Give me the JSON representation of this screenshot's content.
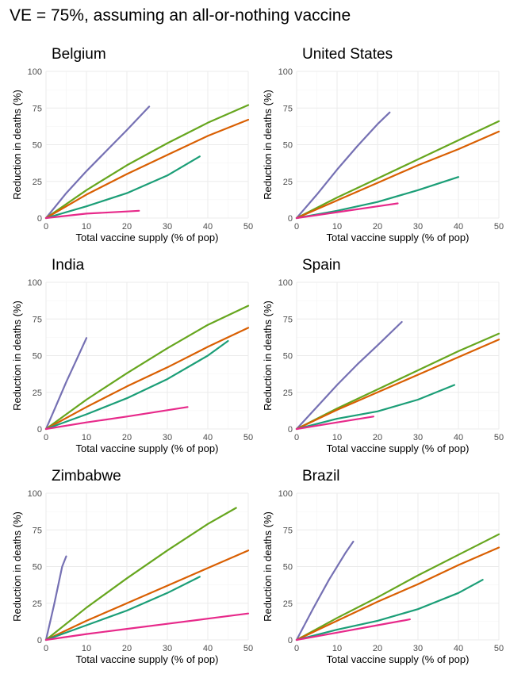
{
  "title": "VE = 75%, assuming an all-or-nothing vaccine",
  "colors": {
    "purple": "#7570b3",
    "green": "#66a61e",
    "orange": "#d95f02",
    "teal": "#1b9e77",
    "pink": "#e7298a"
  },
  "chart_data": [
    {
      "type": "line",
      "title": "Belgium",
      "xlabel": "Total vaccine supply (% of pop)",
      "ylabel": "Reduction in deaths (%)",
      "xlim": [
        0,
        50
      ],
      "ylim": [
        0,
        100
      ],
      "xticks": [
        0,
        10,
        20,
        30,
        40,
        50
      ],
      "yticks": [
        0,
        25,
        50,
        75,
        100
      ],
      "grid": true,
      "series": [
        {
          "color": "#7570b3",
          "x": [
            0,
            5,
            10,
            15,
            20,
            25.5
          ],
          "y": [
            0,
            17,
            32,
            46,
            60,
            76
          ]
        },
        {
          "color": "#66a61e",
          "x": [
            0,
            10,
            20,
            30,
            40,
            50
          ],
          "y": [
            0,
            19,
            36,
            51,
            65,
            77
          ]
        },
        {
          "color": "#d95f02",
          "x": [
            0,
            10,
            20,
            30,
            40,
            50
          ],
          "y": [
            0,
            16,
            30,
            43,
            56,
            67
          ]
        },
        {
          "color": "#1b9e77",
          "x": [
            0,
            10,
            20,
            30,
            38
          ],
          "y": [
            0,
            8,
            17,
            29,
            42
          ]
        },
        {
          "color": "#e7298a",
          "x": [
            0,
            10,
            20,
            23
          ],
          "y": [
            0,
            3,
            4.5,
            5
          ]
        }
      ]
    },
    {
      "type": "line",
      "title": "United States",
      "xlabel": "Total vaccine supply (% of pop)",
      "ylabel": "Reduction in deaths (%)",
      "xlim": [
        0,
        50
      ],
      "ylim": [
        0,
        100
      ],
      "xticks": [
        0,
        10,
        20,
        30,
        40,
        50
      ],
      "yticks": [
        0,
        25,
        50,
        75,
        100
      ],
      "grid": true,
      "series": [
        {
          "color": "#7570b3",
          "x": [
            0,
            5,
            10,
            15,
            20,
            23
          ],
          "y": [
            0,
            16,
            33,
            49,
            64,
            72
          ]
        },
        {
          "color": "#66a61e",
          "x": [
            0,
            10,
            20,
            30,
            40,
            50
          ],
          "y": [
            0,
            14,
            27,
            40,
            53,
            66
          ]
        },
        {
          "color": "#d95f02",
          "x": [
            0,
            10,
            20,
            30,
            40,
            50
          ],
          "y": [
            0,
            12,
            24,
            36,
            47,
            59
          ]
        },
        {
          "color": "#1b9e77",
          "x": [
            0,
            10,
            20,
            30,
            40
          ],
          "y": [
            0,
            5,
            11,
            19,
            28
          ]
        },
        {
          "color": "#e7298a",
          "x": [
            0,
            10,
            20,
            25
          ],
          "y": [
            0,
            4,
            8,
            10
          ]
        }
      ]
    },
    {
      "type": "line",
      "title": "India",
      "xlabel": "Total vaccine supply (% of pop)",
      "ylabel": "Reduction in deaths (%)",
      "xlim": [
        0,
        50
      ],
      "ylim": [
        0,
        100
      ],
      "xticks": [
        0,
        10,
        20,
        30,
        40,
        50
      ],
      "yticks": [
        0,
        25,
        50,
        75,
        100
      ],
      "grid": true,
      "series": [
        {
          "color": "#7570b3",
          "x": [
            0,
            2.5,
            5,
            7.5,
            10
          ],
          "y": [
            0,
            16,
            32,
            47,
            62
          ]
        },
        {
          "color": "#66a61e",
          "x": [
            0,
            10,
            20,
            30,
            40,
            50
          ],
          "y": [
            0,
            20,
            38,
            55,
            71,
            84
          ]
        },
        {
          "color": "#d95f02",
          "x": [
            0,
            10,
            20,
            30,
            40,
            50
          ],
          "y": [
            0,
            15,
            29,
            42,
            56,
            69
          ]
        },
        {
          "color": "#1b9e77",
          "x": [
            0,
            10,
            20,
            30,
            40,
            45
          ],
          "y": [
            0,
            10,
            21,
            34,
            50,
            60
          ]
        },
        {
          "color": "#e7298a",
          "x": [
            0,
            10,
            20,
            35
          ],
          "y": [
            0,
            4.5,
            8.5,
            15
          ]
        }
      ]
    },
    {
      "type": "line",
      "title": "Spain",
      "xlabel": "Total vaccine supply (% of pop)",
      "ylabel": "Reduction in deaths (%)",
      "xlim": [
        0,
        50
      ],
      "ylim": [
        0,
        100
      ],
      "xticks": [
        0,
        10,
        20,
        30,
        40,
        50
      ],
      "yticks": [
        0,
        25,
        50,
        75,
        100
      ],
      "grid": true,
      "series": [
        {
          "color": "#7570b3",
          "x": [
            0,
            5,
            10,
            15,
            20,
            26
          ],
          "y": [
            0,
            15,
            30,
            44,
            57,
            73
          ]
        },
        {
          "color": "#66a61e",
          "x": [
            0,
            10,
            20,
            30,
            40,
            50
          ],
          "y": [
            0,
            14,
            27,
            40,
            53,
            65
          ]
        },
        {
          "color": "#d95f02",
          "x": [
            0,
            10,
            20,
            30,
            40,
            50
          ],
          "y": [
            0,
            13,
            25,
            37,
            49,
            61
          ]
        },
        {
          "color": "#1b9e77",
          "x": [
            0,
            10,
            20,
            30,
            39
          ],
          "y": [
            0,
            7,
            12,
            20,
            30
          ]
        },
        {
          "color": "#e7298a",
          "x": [
            0,
            10,
            19
          ],
          "y": [
            0,
            4.5,
            8.5
          ]
        }
      ]
    },
    {
      "type": "line",
      "title": "Zimbabwe",
      "xlabel": "Total vaccine supply (% of pop)",
      "ylabel": "Reduction in deaths (%)",
      "xlim": [
        0,
        50
      ],
      "ylim": [
        0,
        100
      ],
      "xticks": [
        0,
        10,
        20,
        30,
        40,
        50
      ],
      "yticks": [
        0,
        25,
        50,
        75,
        100
      ],
      "grid": true,
      "series": [
        {
          "color": "#7570b3",
          "x": [
            0,
            2,
            4,
            5
          ],
          "y": [
            0,
            24,
            50,
            57
          ]
        },
        {
          "color": "#66a61e",
          "x": [
            0,
            10,
            20,
            30,
            40,
            47
          ],
          "y": [
            0,
            22,
            42,
            61,
            79,
            90
          ]
        },
        {
          "color": "#d95f02",
          "x": [
            0,
            10,
            20,
            30,
            40,
            50
          ],
          "y": [
            0,
            13,
            25,
            37,
            49,
            61
          ]
        },
        {
          "color": "#1b9e77",
          "x": [
            0,
            10,
            20,
            30,
            38
          ],
          "y": [
            0,
            10,
            20,
            32,
            43
          ]
        },
        {
          "color": "#e7298a",
          "x": [
            0,
            10,
            20,
            30,
            40,
            50
          ],
          "y": [
            0,
            4,
            7.5,
            11,
            14.5,
            18
          ]
        }
      ]
    },
    {
      "type": "line",
      "title": "Brazil",
      "xlabel": "Total vaccine supply (% of pop)",
      "ylabel": "Reduction in deaths (%)",
      "xlim": [
        0,
        50
      ],
      "ylim": [
        0,
        100
      ],
      "xticks": [
        0,
        10,
        20,
        30,
        40,
        50
      ],
      "yticks": [
        0,
        25,
        50,
        75,
        100
      ],
      "grid": true,
      "series": [
        {
          "color": "#7570b3",
          "x": [
            0,
            4,
            8,
            12,
            14
          ],
          "y": [
            0,
            21,
            41,
            59,
            67
          ]
        },
        {
          "color": "#66a61e",
          "x": [
            0,
            10,
            20,
            30,
            40,
            50
          ],
          "y": [
            0,
            15,
            29,
            44,
            58,
            72
          ]
        },
        {
          "color": "#d95f02",
          "x": [
            0,
            10,
            20,
            30,
            40,
            50
          ],
          "y": [
            0,
            13,
            26,
            38,
            51,
            63
          ]
        },
        {
          "color": "#1b9e77",
          "x": [
            0,
            10,
            20,
            30,
            40,
            46
          ],
          "y": [
            0,
            7,
            13,
            21,
            32,
            41
          ]
        },
        {
          "color": "#e7298a",
          "x": [
            0,
            10,
            20,
            28
          ],
          "y": [
            0,
            5,
            10,
            14
          ]
        }
      ]
    }
  ]
}
